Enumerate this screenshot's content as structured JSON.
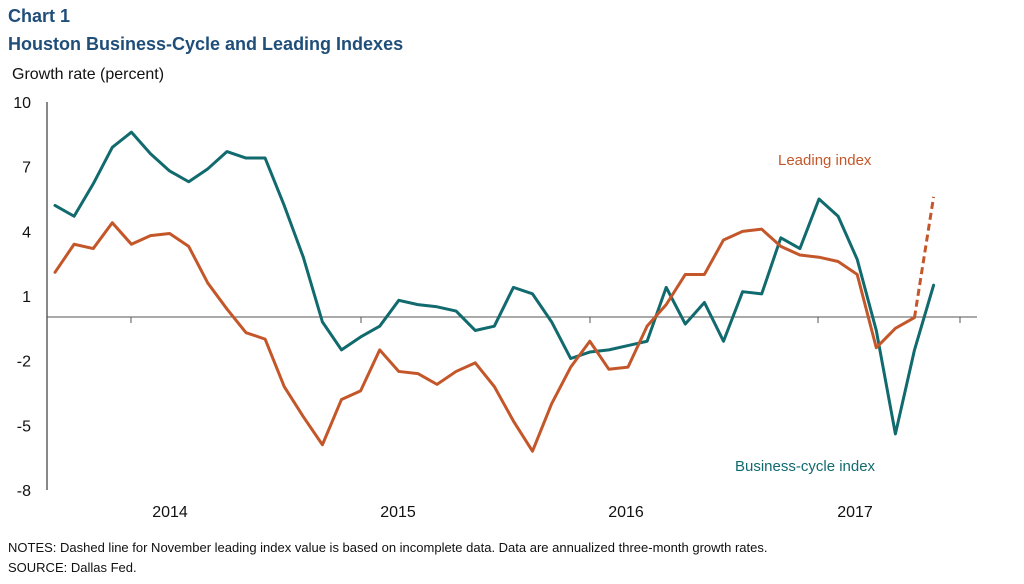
{
  "header": {
    "chart_label": "Chart 1",
    "title": "Houston Business-Cycle and Leading Indexes"
  },
  "footer": {
    "notes": "NOTES: Dashed line for November leading index value is based on incomplete data. Data are annualized three-month growth rates.",
    "source": "SOURCE: Dallas Fed."
  },
  "chart_data": {
    "type": "line",
    "title": "Houston Business-Cycle and Leading Indexes",
    "ylabel": "Growth rate (percent)",
    "xlabel": "",
    "ylim": [
      -8,
      10
    ],
    "yticks": [
      10,
      7,
      4,
      1,
      -2,
      -5,
      -8
    ],
    "year_labels": [
      "2014",
      "2015",
      "2016",
      "2017"
    ],
    "grid": false,
    "colors": {
      "business": "#116a6e",
      "leading": "#c4572a"
    },
    "series": [
      {
        "name": "Business-cycle index",
        "values": [
          5.2,
          4.7,
          6.2,
          7.9,
          8.6,
          7.6,
          6.8,
          6.3,
          6.9,
          7.7,
          7.4,
          7.4,
          5.2,
          2.8,
          -0.2,
          -1.5,
          -0.9,
          -0.4,
          0.8,
          0.6,
          0.5,
          0.3,
          -0.6,
          -0.4,
          1.4,
          1.1,
          -0.2,
          -1.9,
          -1.6,
          -1.5,
          -1.3,
          -1.1,
          1.4,
          -0.3,
          0.7,
          -1.1,
          1.2,
          1.1,
          3.7,
          3.2,
          5.5,
          4.7,
          2.7,
          -0.6,
          -5.4,
          -1.5,
          1.5
        ]
      },
      {
        "name": "Leading index",
        "values": [
          2.1,
          3.4,
          3.2,
          4.4,
          3.4,
          3.8,
          3.9,
          3.3,
          1.6,
          0.4,
          -0.7,
          -1.0,
          -3.2,
          -4.6,
          -5.9,
          -3.8,
          -3.4,
          -1.5,
          -2.5,
          -2.6,
          -3.1,
          -2.5,
          -2.1,
          -3.2,
          -4.8,
          -6.2,
          -4.0,
          -2.3,
          -1.1,
          -2.4,
          -2.3,
          -0.4,
          0.6,
          2.0,
          2.0,
          3.6,
          4.0,
          4.1,
          3.3,
          2.9,
          2.8,
          2.6,
          2.0,
          -1.4,
          -0.5,
          0.0,
          5.6
        ],
        "dashed_from_index": 45
      }
    ],
    "annotations": {
      "leading": "Leading index",
      "business": "Business-cycle index"
    }
  }
}
